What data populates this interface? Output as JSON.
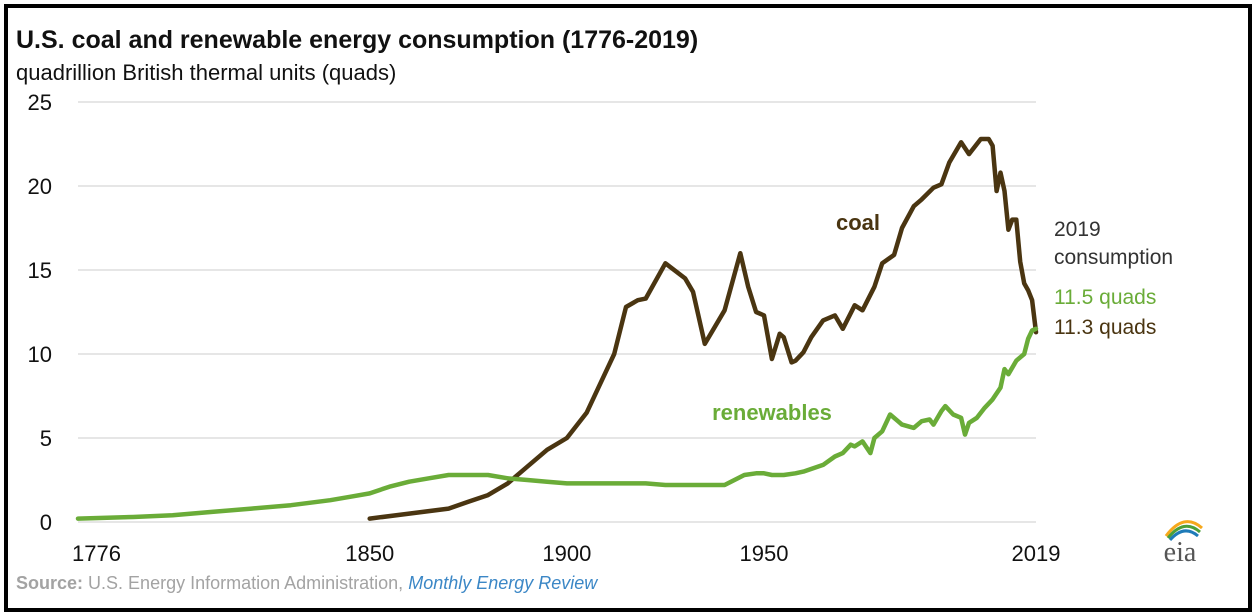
{
  "header": {
    "title": "U.S. coal and renewable energy consumption (1776-2019)",
    "subtitle": "quadrillion British thermal units (quads)"
  },
  "footer": {
    "source_label": "Source:",
    "source_text": "U.S. Energy Information Administration,",
    "source_link": "Monthly Energy Review"
  },
  "logo": {
    "text": "eia",
    "colors": [
      "#f6a81c",
      "#4c9f38",
      "#1e7bb8"
    ]
  },
  "annotation": {
    "heading_line1": "2019",
    "heading_line2": "consumption",
    "renewables_value": "11.5 quads",
    "coal_value": "11.3 quads"
  },
  "chart_data": {
    "type": "line",
    "title": "U.S. coal and renewable energy consumption (1776-2019)",
    "subtitle": "quadrillion British thermal units (quads)",
    "xlabel": "",
    "ylabel": "",
    "xlim": [
      1776,
      2019
    ],
    "ylim": [
      0,
      25
    ],
    "xticks": [
      1776,
      1850,
      1900,
      1950,
      2019
    ],
    "yticks": [
      0,
      5,
      10,
      15,
      20,
      25
    ],
    "grid": true,
    "legend": "none (series labelled inline)",
    "series": [
      {
        "name": "coal",
        "color": "#4a3511",
        "x": [
          1850,
          1860,
          1870,
          1875,
          1880,
          1885,
          1890,
          1895,
          1900,
          1905,
          1910,
          1912,
          1915,
          1918,
          1920,
          1925,
          1930,
          1932,
          1935,
          1940,
          1944,
          1946,
          1948,
          1950,
          1952,
          1954,
          1955,
          1957,
          1958,
          1960,
          1962,
          1965,
          1968,
          1970,
          1973,
          1975,
          1978,
          1980,
          1983,
          1985,
          1988,
          1990,
          1993,
          1995,
          1997,
          2000,
          2002,
          2005,
          2007,
          2008,
          2009,
          2010,
          2011,
          2012,
          2013,
          2014,
          2015,
          2016,
          2017,
          2018,
          2019
        ],
        "values": [
          0.2,
          0.5,
          0.8,
          1.2,
          1.6,
          2.3,
          3.3,
          4.3,
          5.0,
          6.5,
          9.0,
          10.0,
          12.8,
          13.2,
          13.3,
          15.4,
          14.5,
          13.7,
          10.6,
          12.6,
          16.0,
          14.0,
          12.5,
          12.3,
          9.7,
          11.2,
          11.0,
          9.5,
          9.6,
          10.1,
          11.0,
          12.0,
          12.3,
          11.5,
          12.9,
          12.6,
          14.0,
          15.4,
          15.9,
          17.5,
          18.8,
          19.2,
          19.9,
          20.1,
          21.4,
          22.6,
          21.9,
          22.8,
          22.8,
          22.4,
          19.7,
          20.8,
          19.7,
          17.4,
          18.0,
          18.0,
          15.5,
          14.2,
          13.8,
          13.2,
          11.3
        ]
      },
      {
        "name": "renewables",
        "color": "#6aac38",
        "x": [
          1776,
          1790,
          1800,
          1810,
          1820,
          1830,
          1840,
          1845,
          1850,
          1855,
          1860,
          1865,
          1870,
          1875,
          1880,
          1885,
          1890,
          1895,
          1900,
          1905,
          1910,
          1915,
          1920,
          1925,
          1930,
          1935,
          1940,
          1945,
          1948,
          1950,
          1952,
          1955,
          1958,
          1960,
          1965,
          1968,
          1970,
          1972,
          1973,
          1975,
          1977,
          1978,
          1980,
          1982,
          1984,
          1985,
          1988,
          1990,
          1992,
          1993,
          1995,
          1996,
          1998,
          2000,
          2001,
          2002,
          2004,
          2006,
          2008,
          2010,
          2011,
          2012,
          2014,
          2016,
          2017,
          2018,
          2019
        ],
        "values": [
          0.2,
          0.3,
          0.4,
          0.6,
          0.8,
          1.0,
          1.3,
          1.5,
          1.7,
          2.1,
          2.4,
          2.6,
          2.8,
          2.8,
          2.8,
          2.6,
          2.5,
          2.4,
          2.3,
          2.3,
          2.3,
          2.3,
          2.3,
          2.2,
          2.2,
          2.2,
          2.2,
          2.8,
          2.9,
          2.9,
          2.8,
          2.8,
          2.9,
          3.0,
          3.4,
          3.9,
          4.1,
          4.6,
          4.5,
          4.8,
          4.1,
          5.0,
          5.4,
          6.4,
          6.0,
          5.8,
          5.6,
          6.0,
          6.1,
          5.8,
          6.6,
          6.9,
          6.4,
          6.2,
          5.2,
          5.9,
          6.2,
          6.8,
          7.3,
          8.0,
          9.1,
          8.8,
          9.6,
          10.0,
          10.9,
          11.4,
          11.5
        ]
      }
    ],
    "series_labels": [
      "coal",
      "renewables"
    ],
    "annotations": [
      "2019",
      "consumption",
      "11.5 quads",
      "11.3 quads"
    ]
  }
}
